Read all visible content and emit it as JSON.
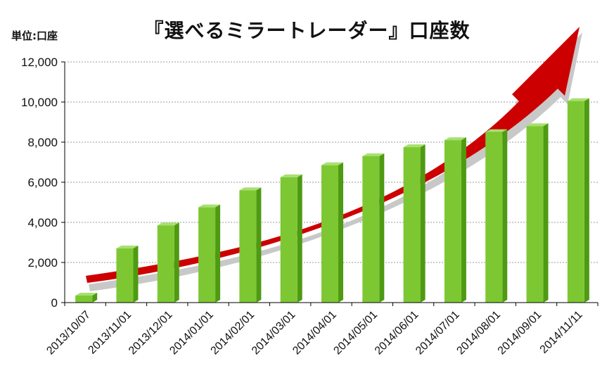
{
  "chart_data": {
    "type": "bar",
    "title": "『選べるミラートレーダー』口座数",
    "unit_label": "単位:口座",
    "xlabel": "",
    "ylabel": "",
    "ylim": [
      0,
      12000
    ],
    "yticks": [
      0,
      2000,
      4000,
      6000,
      8000,
      10000,
      12000
    ],
    "ytick_labels": [
      "0",
      "2,000",
      "4,000",
      "6,000",
      "8,000",
      "10,000",
      "12,000"
    ],
    "grid": true,
    "categories": [
      "2013/10/07",
      "2013/11/01",
      "2013/12/01",
      "2014/01/01",
      "2014/02/01",
      "2014/03/01",
      "2014/04/01",
      "2014/05/01",
      "2014/06/01",
      "2014/07/01",
      "2014/08/01",
      "2014/09/01",
      "2014/11/11"
    ],
    "values": [
      350,
      2700,
      3850,
      4750,
      5600,
      6250,
      6850,
      7300,
      7750,
      8100,
      8500,
      8800,
      10050
    ],
    "colors": {
      "bar_front": "#7dc832",
      "bar_side": "#4e9a12",
      "bar_top": "#a8e070",
      "arrow": "#cc0000",
      "arrow_shadow": "#c8c8c8",
      "grid": "#9a9a9a",
      "axis": "#000000"
    }
  }
}
